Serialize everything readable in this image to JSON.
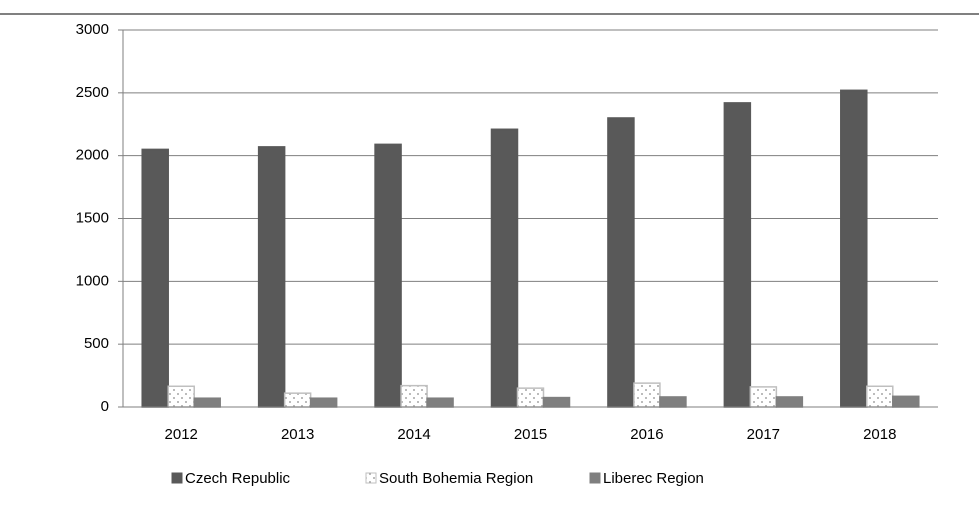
{
  "chart_data": {
    "type": "bar",
    "categories": [
      "2012",
      "2013",
      "2014",
      "2015",
      "2016",
      "2017",
      "2018"
    ],
    "series": [
      {
        "name": "Czech Republic",
        "color": "#595959",
        "edgecolor": "#595959",
        "values": [
          2050,
          2070,
          2090,
          2210,
          2300,
          2420,
          2520
        ]
      },
      {
        "name": "South Bohemia Region",
        "color": "#ffffff",
        "edgecolor": "#bfbfbf",
        "values": [
          165,
          110,
          170,
          150,
          190,
          160,
          165
        ]
      },
      {
        "name": "Liberec Region",
        "color": "#7f7f7f",
        "edgecolor": "#7f7f7f",
        "values": [
          70,
          70,
          70,
          75,
          80,
          80,
          85
        ]
      }
    ],
    "ylim": [
      0,
      3000
    ],
    "yticks": [
      0,
      500,
      1000,
      1500,
      2000,
      2500,
      3000
    ],
    "grid": true,
    "legend": "bottom"
  }
}
